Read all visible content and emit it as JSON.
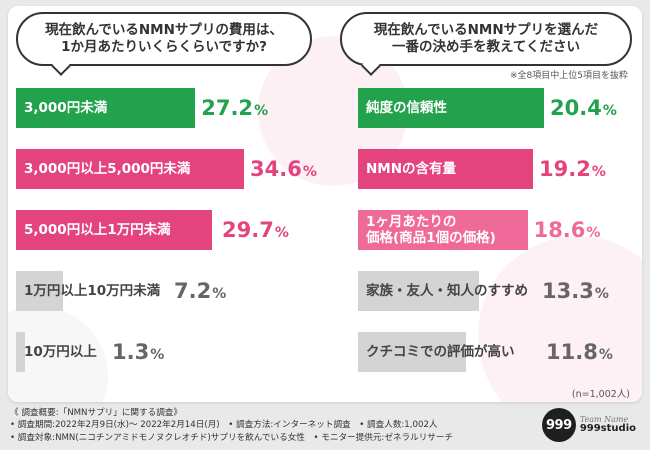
{
  "colors": {
    "green": "#23a24d",
    "pink": "#e4447e",
    "light_pink": "#ef6a99",
    "gray_bar": "#d4d4d4",
    "gray_val": "#666666"
  },
  "left_question": "現在飲んでいるNMNサプリの費用は、\n1か月あたりいくらくらいですか?",
  "right_question": "現在飲んでいるNMNサプリを選んだ\n一番の決め手を教えてください",
  "right_note": "※全8項目中上位5項目を抜粋",
  "footer_n": "(n=1,002人)",
  "survey": {
    "line1": "《 調査概要:「NMNサプリ」に関する調査》",
    "line2": "• 調査期間:2022年2月9日(水)〜 2022年2月14日(月)　• 調査方法:インターネット調査　• 調査人数:1,002人",
    "line3": "• 調査対象:NMN(ニコチンアミドモノヌクレオチド)サプリを飲んでいる女性　• モニター提供元:ゼネラルリサーチ"
  },
  "logo": {
    "mark": "999",
    "script": "Team Name",
    "name": "999studio"
  },
  "chart_data": [
    {
      "type": "bar",
      "title": "現在飲んでいるNMNサプリの費用は、1か月あたりいくらくらいですか?",
      "categories": [
        "3,000円未満",
        "3,000円以上5,000円未満",
        "5,000円以上1万円未満",
        "1万円以上10万円未満",
        "10万円以上"
      ],
      "values": [
        27.2,
        34.6,
        29.7,
        7.2,
        1.3
      ],
      "labels": [
        {
          "num": "27.2",
          "pct": "%"
        },
        {
          "num": "34.6",
          "pct": "%"
        },
        {
          "num": "29.7",
          "pct": "%"
        },
        {
          "num": "7.2",
          "pct": "%"
        },
        {
          "num": "1.3",
          "pct": "%"
        }
      ],
      "unit": "%"
    },
    {
      "type": "bar",
      "title": "現在飲んでいるNMNサプリを選んだ一番の決め手を教えてください",
      "categories": [
        "純度の信頼性",
        "NMNの含有量",
        "1ヶ月あたりの価格(商品1個の価格)",
        "家族・友人・知人のすすめ",
        "クチコミでの評価が高い"
      ],
      "category_lines": [
        [
          "純度の信頼性"
        ],
        [
          "NMNの含有量"
        ],
        [
          "1ヶ月あたりの",
          "価格(商品1個の価格)"
        ],
        [
          "家族・友人・知人のすすめ"
        ],
        [
          "クチコミでの評価が高い"
        ]
      ],
      "values": [
        20.4,
        19.2,
        18.6,
        13.3,
        11.8
      ],
      "labels": [
        {
          "num": "20.4",
          "pct": "%"
        },
        {
          "num": "19.2",
          "pct": "%"
        },
        {
          "num": "18.6",
          "pct": "%"
        },
        {
          "num": "13.3",
          "pct": "%"
        },
        {
          "num": "11.8",
          "pct": "%"
        }
      ],
      "unit": "%"
    }
  ]
}
